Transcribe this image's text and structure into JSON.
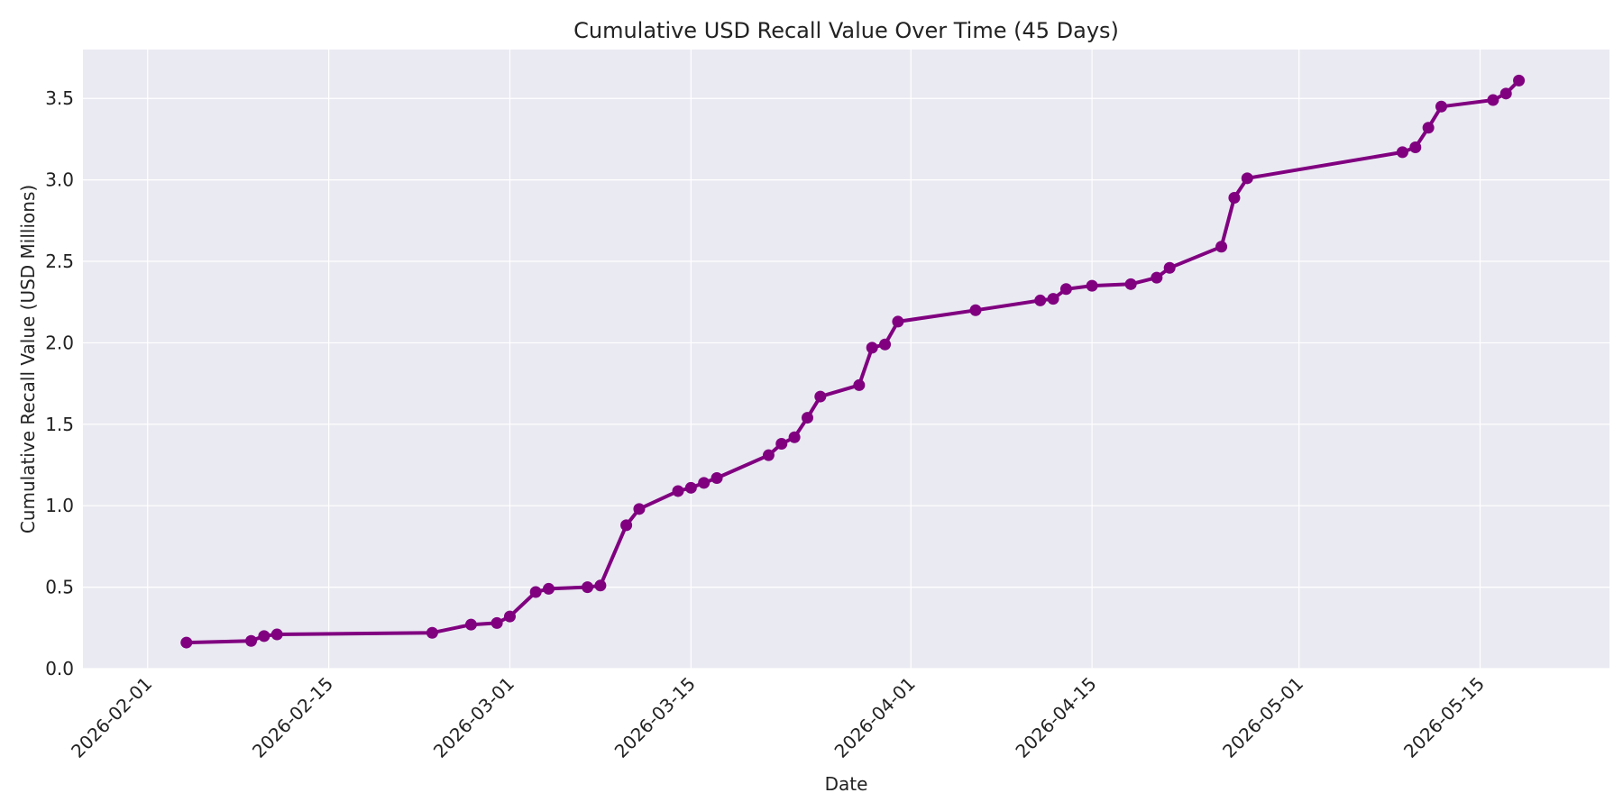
{
  "chart_data": {
    "type": "line",
    "title": "Cumulative USD Recall Value Over Time (45 Days)",
    "xlabel": "Date",
    "ylabel": "Cumulative Recall Value (USD Millions)",
    "xlim": [
      "2026-01-27",
      "2026-05-25"
    ],
    "ylim": [
      0,
      3.8
    ],
    "x_ticks": [
      "2026-02-01",
      "2026-02-15",
      "2026-03-01",
      "2026-03-15",
      "2026-04-01",
      "2026-04-15",
      "2026-05-01",
      "2026-05-15"
    ],
    "y_ticks": [
      0.0,
      0.5,
      1.0,
      1.5,
      2.0,
      2.5,
      3.0,
      3.5
    ],
    "y_tick_labels": [
      "0.0",
      "0.5",
      "1.0",
      "1.5",
      "2.0",
      "2.5",
      "3.0",
      "3.5"
    ],
    "grid": true,
    "background_color": "#eaeaf2",
    "grid_color": "#ffffff",
    "line_color": "#800080",
    "series": [
      {
        "x": [
          "2026-02-04",
          "2026-02-09",
          "2026-02-10",
          "2026-02-11",
          "2026-02-23",
          "2026-02-26",
          "2026-02-28",
          "2026-03-01",
          "2026-03-03",
          "2026-03-04",
          "2026-03-07",
          "2026-03-08",
          "2026-03-10",
          "2026-03-11",
          "2026-03-14",
          "2026-03-15",
          "2026-03-16",
          "2026-03-17",
          "2026-03-21",
          "2026-03-22",
          "2026-03-23",
          "2026-03-24",
          "2026-03-25",
          "2026-03-28",
          "2026-03-29",
          "2026-03-30",
          "2026-03-31",
          "2026-04-06",
          "2026-04-11",
          "2026-04-12",
          "2026-04-13",
          "2026-04-15",
          "2026-04-18",
          "2026-04-20",
          "2026-04-21",
          "2026-04-25",
          "2026-04-26",
          "2026-04-27",
          "2026-05-09",
          "2026-05-10",
          "2026-05-11",
          "2026-05-12",
          "2026-05-16",
          "2026-05-17",
          "2026-05-18"
        ],
        "values": [
          0.16,
          0.17,
          0.2,
          0.21,
          0.22,
          0.27,
          0.28,
          0.32,
          0.47,
          0.49,
          0.5,
          0.51,
          0.88,
          0.98,
          1.09,
          1.11,
          1.14,
          1.17,
          1.31,
          1.38,
          1.42,
          1.54,
          1.67,
          1.74,
          1.97,
          1.99,
          2.13,
          2.2,
          2.26,
          2.27,
          2.33,
          2.35,
          2.36,
          2.4,
          2.46,
          2.59,
          2.89,
          3.01,
          3.17,
          3.2,
          3.32,
          3.45,
          3.49,
          3.53,
          3.61
        ]
      }
    ]
  }
}
